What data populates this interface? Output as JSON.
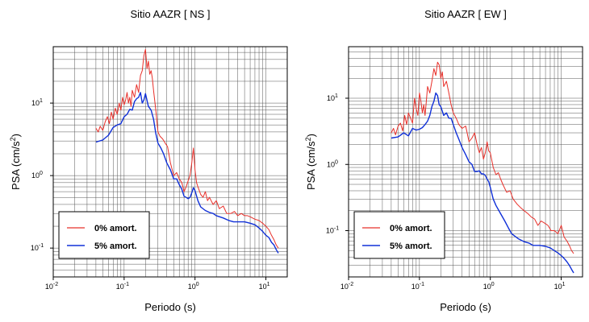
{
  "colors": {
    "series0": "#e8302a",
    "series1": "#1030d8",
    "grid": "#555555"
  },
  "chart_data": [
    {
      "type": "line",
      "title": "Sitio AAZR [ NS ]",
      "xlabel": "Periodo (s)",
      "ylabel_base": "PSA (cm/s",
      "ylabel_exp": "2",
      "ylabel_end": ")",
      "xscale": "log",
      "yscale": "log",
      "xlim": [
        0.01,
        20
      ],
      "ylim": [
        0.04,
        60
      ],
      "grid": true,
      "legend_position": "bottom-left",
      "xticks": [
        {
          "base": "10",
          "exp": "-2"
        },
        {
          "base": "10",
          "exp": "-1"
        },
        {
          "base": "10",
          "exp": "0"
        },
        {
          "base": "10",
          "exp": "1"
        }
      ],
      "yticks": [
        {
          "base": "10",
          "exp": "-1"
        },
        {
          "base": "10",
          "exp": "0"
        },
        {
          "base": "10",
          "exp": "1"
        }
      ],
      "series": [
        {
          "name": "0% amort.",
          "x": [
            0.04,
            0.043,
            0.046,
            0.05,
            0.054,
            0.058,
            0.062,
            0.066,
            0.07,
            0.075,
            0.08,
            0.085,
            0.09,
            0.095,
            0.1,
            0.105,
            0.11,
            0.115,
            0.12,
            0.125,
            0.13,
            0.14,
            0.15,
            0.16,
            0.17,
            0.18,
            0.19,
            0.2,
            0.21,
            0.22,
            0.23,
            0.24,
            0.25,
            0.26,
            0.28,
            0.3,
            0.32,
            0.35,
            0.38,
            0.41,
            0.45,
            0.5,
            0.55,
            0.6,
            0.65,
            0.7,
            0.75,
            0.8,
            0.85,
            0.9,
            0.95,
            1.0,
            1.05,
            1.1,
            1.2,
            1.3,
            1.4,
            1.5,
            1.6,
            1.8,
            2.0,
            2.2,
            2.5,
            2.8,
            3.2,
            3.6,
            4.0,
            4.5,
            5.0,
            5.5,
            6.0,
            7.0,
            8.0,
            9.0,
            10.0,
            11.0,
            12.0,
            13.0,
            14.0,
            15.0
          ],
          "y": [
            4.5,
            4.0,
            4.8,
            4.2,
            5.5,
            6.5,
            5.2,
            7.5,
            6.0,
            8.5,
            7.0,
            10.0,
            8.0,
            12.0,
            9.5,
            11.0,
            14.0,
            10.0,
            12.0,
            9.0,
            15.0,
            12.0,
            18.0,
            14.0,
            24.0,
            28.0,
            45.0,
            55.0,
            30.0,
            38.0,
            25.0,
            28.0,
            22.0,
            15.0,
            8.0,
            4.0,
            3.5,
            3.2,
            2.8,
            2.5,
            1.5,
            1.0,
            1.1,
            0.9,
            0.8,
            0.6,
            0.7,
            0.85,
            1.0,
            1.5,
            2.4,
            1.2,
            0.8,
            0.7,
            0.55,
            0.5,
            0.6,
            0.45,
            0.5,
            0.4,
            0.45,
            0.35,
            0.38,
            0.3,
            0.3,
            0.32,
            0.28,
            0.3,
            0.28,
            0.28,
            0.27,
            0.25,
            0.24,
            0.22,
            0.2,
            0.18,
            0.15,
            0.13,
            0.11,
            0.1
          ]
        },
        {
          "name": "5% amort.",
          "x": [
            0.04,
            0.05,
            0.06,
            0.07,
            0.08,
            0.09,
            0.1,
            0.11,
            0.12,
            0.13,
            0.14,
            0.15,
            0.16,
            0.17,
            0.18,
            0.19,
            0.2,
            0.22,
            0.24,
            0.26,
            0.28,
            0.3,
            0.33,
            0.36,
            0.4,
            0.45,
            0.5,
            0.55,
            0.6,
            0.65,
            0.7,
            0.75,
            0.8,
            0.85,
            0.9,
            0.95,
            1.0,
            1.1,
            1.2,
            1.4,
            1.6,
            1.8,
            2.0,
            2.5,
            3.0,
            3.5,
            4.0,
            5.0,
            6.0,
            7.0,
            8.0,
            9.0,
            10.0,
            11.0,
            12.0,
            13.0,
            14.0,
            15.0
          ],
          "y": [
            2.9,
            3.1,
            3.6,
            4.6,
            5.0,
            5.2,
            6.5,
            7.0,
            8.2,
            8.0,
            10.5,
            11.5,
            12.0,
            14.0,
            10.0,
            11.0,
            13.5,
            9.0,
            8.0,
            6.0,
            3.8,
            2.8,
            2.4,
            2.0,
            1.5,
            1.2,
            0.9,
            0.9,
            0.75,
            0.65,
            0.52,
            0.5,
            0.48,
            0.5,
            0.58,
            0.68,
            0.62,
            0.45,
            0.37,
            0.33,
            0.31,
            0.3,
            0.28,
            0.26,
            0.24,
            0.23,
            0.23,
            0.23,
            0.22,
            0.21,
            0.19,
            0.17,
            0.15,
            0.14,
            0.12,
            0.11,
            0.095,
            0.085
          ]
        }
      ]
    },
    {
      "type": "line",
      "title": "Sitio AAZR [ EW ]",
      "xlabel": "Periodo (s)",
      "ylabel_base": "PSA (cm/s",
      "ylabel_exp": "2",
      "ylabel_end": ")",
      "xscale": "log",
      "yscale": "log",
      "xlim": [
        0.01,
        20
      ],
      "ylim": [
        0.02,
        60
      ],
      "grid": true,
      "legend_position": "bottom-left",
      "xticks": [
        {
          "base": "10",
          "exp": "-2"
        },
        {
          "base": "10",
          "exp": "-1"
        },
        {
          "base": "10",
          "exp": "0"
        },
        {
          "base": "10",
          "exp": "1"
        }
      ],
      "yticks": [
        {
          "base": "10",
          "exp": "-1"
        },
        {
          "base": "10",
          "exp": "0"
        },
        {
          "base": "10",
          "exp": "1"
        }
      ],
      "series": [
        {
          "name": "0% amort.",
          "x": [
            0.04,
            0.043,
            0.046,
            0.05,
            0.054,
            0.058,
            0.062,
            0.066,
            0.07,
            0.075,
            0.08,
            0.085,
            0.09,
            0.095,
            0.1,
            0.105,
            0.11,
            0.115,
            0.12,
            0.125,
            0.13,
            0.14,
            0.15,
            0.16,
            0.17,
            0.18,
            0.19,
            0.2,
            0.21,
            0.22,
            0.24,
            0.26,
            0.28,
            0.3,
            0.33,
            0.36,
            0.4,
            0.45,
            0.5,
            0.55,
            0.6,
            0.65,
            0.7,
            0.75,
            0.8,
            0.85,
            0.9,
            0.95,
            1.0,
            1.1,
            1.2,
            1.3,
            1.4,
            1.5,
            1.7,
            1.9,
            2.1,
            2.4,
            2.7,
            3.0,
            3.4,
            3.8,
            4.2,
            4.7,
            5.2,
            5.8,
            6.5,
            7.2,
            8.0,
            9.0,
            10.0,
            11.0,
            12.0,
            13.0,
            14.0,
            15.0
          ],
          "y": [
            3.0,
            3.5,
            2.8,
            3.8,
            4.2,
            3.2,
            5.5,
            4.0,
            6.0,
            5.0,
            4.2,
            10.0,
            7.0,
            5.5,
            12.0,
            9.0,
            6.0,
            8.0,
            5.5,
            9.0,
            15.0,
            12.0,
            18.0,
            28.0,
            22.0,
            35.0,
            32.0,
            20.0,
            25.0,
            15.0,
            18.0,
            12.0,
            8.0,
            6.0,
            5.0,
            4.0,
            3.5,
            3.8,
            2.2,
            2.5,
            3.0,
            2.0,
            1.5,
            1.8,
            1.2,
            1.5,
            2.2,
            1.6,
            1.5,
            0.9,
            0.7,
            0.75,
            0.6,
            0.5,
            0.38,
            0.4,
            0.3,
            0.25,
            0.22,
            0.2,
            0.18,
            0.16,
            0.15,
            0.12,
            0.14,
            0.13,
            0.12,
            0.1,
            0.1,
            0.09,
            0.12,
            0.08,
            0.07,
            0.06,
            0.05,
            0.045
          ]
        },
        {
          "name": "5% amort.",
          "x": [
            0.04,
            0.05,
            0.06,
            0.07,
            0.08,
            0.09,
            0.1,
            0.11,
            0.12,
            0.13,
            0.14,
            0.15,
            0.16,
            0.17,
            0.18,
            0.19,
            0.2,
            0.22,
            0.24,
            0.26,
            0.28,
            0.3,
            0.33,
            0.36,
            0.4,
            0.45,
            0.5,
            0.55,
            0.6,
            0.65,
            0.7,
            0.75,
            0.8,
            0.85,
            0.9,
            0.95,
            1.0,
            1.1,
            1.2,
            1.4,
            1.6,
            1.8,
            2.0,
            2.5,
            3.0,
            3.5,
            4.0,
            5.0,
            6.0,
            7.0,
            8.0,
            9.0,
            10.0,
            11.0,
            12.0,
            13.0,
            14.0,
            15.0
          ],
          "y": [
            2.5,
            2.6,
            3.0,
            2.7,
            3.5,
            3.3,
            3.4,
            3.6,
            4.0,
            4.5,
            5.5,
            7.5,
            9.0,
            12.0,
            11.0,
            8.0,
            7.5,
            5.5,
            6.0,
            5.0,
            5.0,
            4.0,
            3.0,
            2.4,
            1.8,
            1.4,
            1.1,
            1.0,
            0.78,
            0.78,
            0.8,
            0.72,
            0.72,
            0.68,
            0.6,
            0.55,
            0.45,
            0.3,
            0.24,
            0.18,
            0.14,
            0.11,
            0.09,
            0.075,
            0.068,
            0.065,
            0.06,
            0.06,
            0.058,
            0.055,
            0.05,
            0.046,
            0.042,
            0.038,
            0.034,
            0.03,
            0.026,
            0.023
          ]
        }
      ]
    }
  ]
}
